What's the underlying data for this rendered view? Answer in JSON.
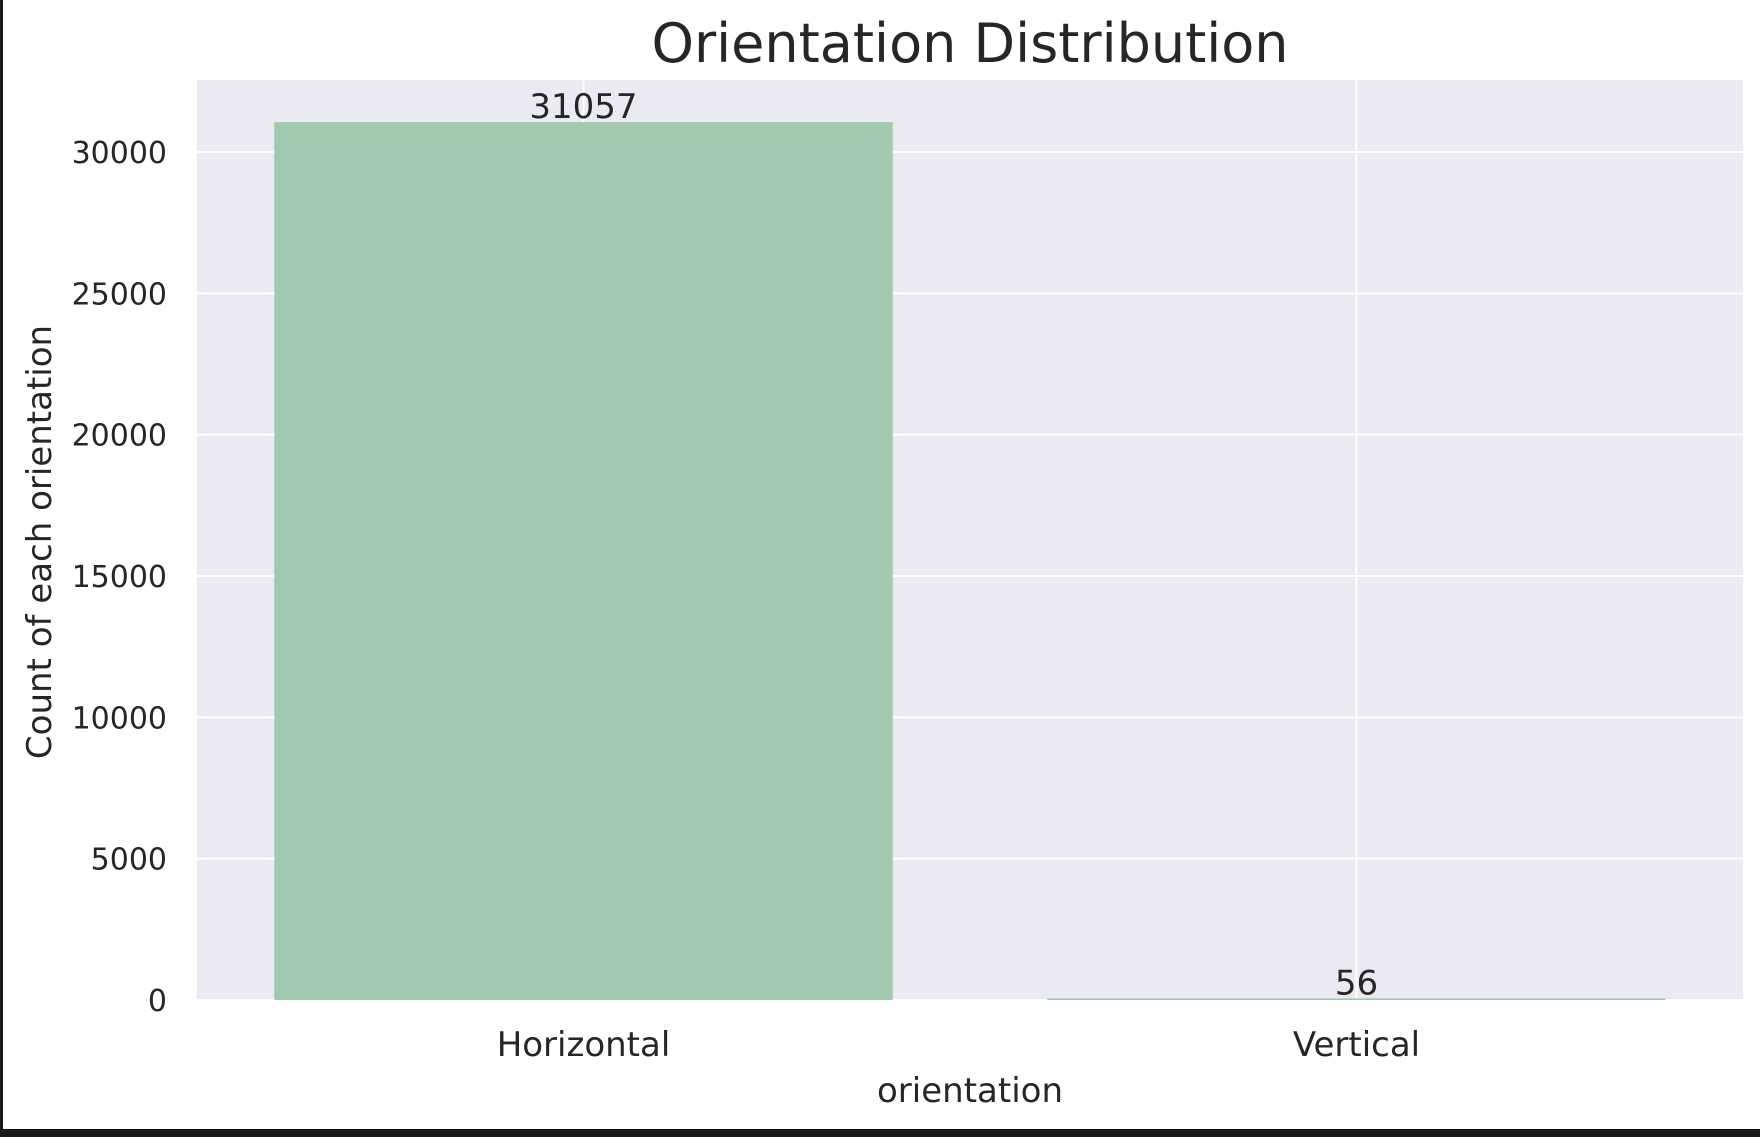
{
  "chart_data": {
    "type": "bar",
    "title": "Orientation Distribution",
    "xlabel": "orientation",
    "ylabel": "Count of each orientation",
    "categories": [
      "Horizontal",
      "Vertical"
    ],
    "values": [
      31057,
      56
    ],
    "data_labels": [
      "31057",
      "56"
    ],
    "ylim": [
      0,
      32500
    ],
    "yticks": [
      0,
      5000,
      10000,
      15000,
      20000,
      25000,
      30000
    ],
    "ytick_labels": [
      "0",
      "5000",
      "10000",
      "15000",
      "20000",
      "25000",
      "30000"
    ],
    "grid": true,
    "legend": "none",
    "colors": {
      "bar": "#a1c9ae",
      "plot_background": "#eaeaf2",
      "grid": "#ffffff"
    }
  }
}
